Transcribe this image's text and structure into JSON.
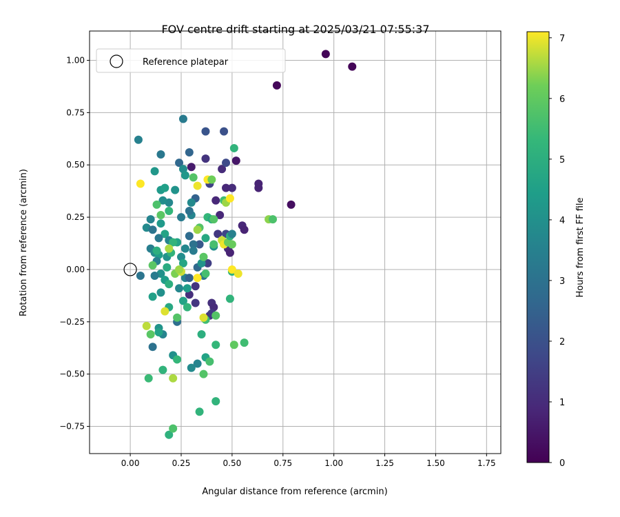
{
  "chart_data": {
    "type": "scatter",
    "title": "FOV centre drift starting at 2025/03/21 07:55:37",
    "xlabel": "Angular distance from reference (arcmin)",
    "ylabel": "Rotation from reference (arcmin)",
    "xlim": [
      -0.2,
      1.82
    ],
    "ylim": [
      -0.88,
      1.14
    ],
    "xticks": [
      "0.00",
      "0.25",
      "0.50",
      "0.75",
      "1.00",
      "1.25",
      "1.50",
      "1.75"
    ],
    "xtick_values": [
      0,
      0.25,
      0.5,
      0.75,
      1.0,
      1.25,
      1.5,
      1.75
    ],
    "yticks": [
      "1.00",
      "0.75",
      "0.50",
      "0.25",
      "0.00",
      "−0.25",
      "−0.50",
      "−0.75"
    ],
    "ytick_values": [
      1.0,
      0.75,
      0.5,
      0.25,
      0,
      -0.25,
      -0.5,
      -0.75
    ],
    "grid": true,
    "legend": {
      "position": "upper-left",
      "entries": [
        {
          "label": "Reference platepar",
          "marker": "open-circle"
        }
      ]
    },
    "reference_point": {
      "x": 0.0,
      "y": 0.0
    },
    "colorbar": {
      "label": "Hours from first FF file",
      "colormap": "viridis",
      "range": [
        0,
        7.1
      ],
      "ticks": [
        "0",
        "1",
        "2",
        "3",
        "4",
        "5",
        "6",
        "7"
      ],
      "tick_values": [
        0,
        1,
        2,
        3,
        4,
        5,
        6,
        7
      ]
    },
    "points": [
      {
        "x": 0.96,
        "y": 1.03,
        "h": 0.1
      },
      {
        "x": 1.09,
        "y": 0.97,
        "h": 0.1
      },
      {
        "x": 0.72,
        "y": 0.88,
        "h": 0.15
      },
      {
        "x": 0.79,
        "y": 0.31,
        "h": 0.3
      },
      {
        "x": 0.63,
        "y": 0.41,
        "h": 0.8
      },
      {
        "x": 0.63,
        "y": 0.39,
        "h": 0.8
      },
      {
        "x": 0.52,
        "y": 0.52,
        "h": 0.5
      },
      {
        "x": 0.55,
        "y": 0.21,
        "h": 0.9
      },
      {
        "x": 0.56,
        "y": 0.19,
        "h": 0.8
      },
      {
        "x": 0.5,
        "y": 0.39,
        "h": 1.0
      },
      {
        "x": 0.47,
        "y": 0.39,
        "h": 0.9
      },
      {
        "x": 0.45,
        "y": 0.48,
        "h": 1.0
      },
      {
        "x": 0.42,
        "y": 0.33,
        "h": 0.9
      },
      {
        "x": 0.44,
        "y": 0.26,
        "h": 0.9
      },
      {
        "x": 0.43,
        "y": 0.17,
        "h": 1.3
      },
      {
        "x": 0.48,
        "y": 0.1,
        "h": 1.0
      },
      {
        "x": 0.49,
        "y": 0.08,
        "h": 0.8
      },
      {
        "x": 0.47,
        "y": 0.17,
        "h": 1.7
      },
      {
        "x": 0.37,
        "y": 0.53,
        "h": 1.2
      },
      {
        "x": 0.3,
        "y": 0.49,
        "h": 0.6
      },
      {
        "x": 0.37,
        "y": 0.66,
        "h": 2.1
      },
      {
        "x": 0.46,
        "y": 0.66,
        "h": 2.0
      },
      {
        "x": 0.47,
        "y": 0.51,
        "h": 1.8
      },
      {
        "x": 0.39,
        "y": 0.41,
        "h": 1.6
      },
      {
        "x": 0.4,
        "y": -0.16,
        "h": 1.1
      },
      {
        "x": 0.41,
        "y": -0.18,
        "h": 1.0
      },
      {
        "x": 0.39,
        "y": -0.22,
        "h": 1.2
      },
      {
        "x": 0.4,
        "y": -0.21,
        "h": 1.4
      },
      {
        "x": 0.38,
        "y": 0.03,
        "h": 1.5
      },
      {
        "x": 0.32,
        "y": -0.08,
        "h": 1.2
      },
      {
        "x": 0.29,
        "y": -0.12,
        "h": 1.1
      },
      {
        "x": 0.32,
        "y": -0.16,
        "h": 1.3
      },
      {
        "x": 0.32,
        "y": 0.34,
        "h": 2.5
      },
      {
        "x": 0.34,
        "y": 0.12,
        "h": 2.2
      },
      {
        "x": 0.29,
        "y": 0.56,
        "h": 2.6
      },
      {
        "x": 0.24,
        "y": 0.51,
        "h": 2.7
      },
      {
        "x": 0.26,
        "y": 0.72,
        "h": 3.3
      },
      {
        "x": 0.04,
        "y": 0.62,
        "h": 3.5
      },
      {
        "x": 0.15,
        "y": 0.55,
        "h": 3.2
      },
      {
        "x": 0.05,
        "y": -0.03,
        "h": 3.1
      },
      {
        "x": 0.11,
        "y": -0.37,
        "h": 3.0
      },
      {
        "x": 0.16,
        "y": -0.31,
        "h": 3.6
      },
      {
        "x": 0.23,
        "y": -0.25,
        "h": 2.9
      },
      {
        "x": 0.3,
        "y": -0.47,
        "h": 3.8
      },
      {
        "x": 0.33,
        "y": -0.45,
        "h": 3.6
      },
      {
        "x": 0.21,
        "y": -0.41,
        "h": 4.0
      },
      {
        "x": 0.3,
        "y": 0.26,
        "h": 3.6
      },
      {
        "x": 0.25,
        "y": 0.25,
        "h": 3.3
      },
      {
        "x": 0.29,
        "y": 0.28,
        "h": 3.0
      },
      {
        "x": 0.3,
        "y": 0.32,
        "h": 3.8
      },
      {
        "x": 0.19,
        "y": 0.32,
        "h": 3.7
      },
      {
        "x": 0.16,
        "y": 0.33,
        "h": 3.9
      },
      {
        "x": 0.22,
        "y": 0.38,
        "h": 4.1
      },
      {
        "x": 0.15,
        "y": 0.38,
        "h": 4.3
      },
      {
        "x": 0.17,
        "y": 0.39,
        "h": 4.5
      },
      {
        "x": 0.12,
        "y": 0.47,
        "h": 4.2
      },
      {
        "x": 0.26,
        "y": 0.48,
        "h": 3.9
      },
      {
        "x": 0.27,
        "y": 0.45,
        "h": 4.2
      },
      {
        "x": 0.1,
        "y": 0.24,
        "h": 3.6
      },
      {
        "x": 0.08,
        "y": 0.2,
        "h": 3.8
      },
      {
        "x": 0.11,
        "y": 0.19,
        "h": 3.1
      },
      {
        "x": 0.15,
        "y": 0.22,
        "h": 4.3
      },
      {
        "x": 0.17,
        "y": 0.17,
        "h": 4.6
      },
      {
        "x": 0.14,
        "y": 0.15,
        "h": 3.2
      },
      {
        "x": 0.19,
        "y": 0.14,
        "h": 3.6
      },
      {
        "x": 0.1,
        "y": 0.1,
        "h": 3.4
      },
      {
        "x": 0.12,
        "y": 0.08,
        "h": 3.9
      },
      {
        "x": 0.14,
        "y": 0.07,
        "h": 4.4
      },
      {
        "x": 0.18,
        "y": 0.06,
        "h": 4.1
      },
      {
        "x": 0.2,
        "y": 0.08,
        "h": 5.2
      },
      {
        "x": 0.25,
        "y": 0.06,
        "h": 3.9
      },
      {
        "x": 0.27,
        "y": 0.1,
        "h": 3.7
      },
      {
        "x": 0.29,
        "y": 0.16,
        "h": 2.8
      },
      {
        "x": 0.31,
        "y": 0.12,
        "h": 3.0
      },
      {
        "x": 0.31,
        "y": 0.09,
        "h": 3.3
      },
      {
        "x": 0.23,
        "y": 0.13,
        "h": 4.6
      },
      {
        "x": 0.21,
        "y": 0.13,
        "h": 5.2
      },
      {
        "x": 0.26,
        "y": 0.03,
        "h": 4.7
      },
      {
        "x": 0.27,
        "y": -0.04,
        "h": 3.5
      },
      {
        "x": 0.29,
        "y": -0.04,
        "h": 2.5
      },
      {
        "x": 0.33,
        "y": 0.01,
        "h": 2.7
      },
      {
        "x": 0.36,
        "y": -0.03,
        "h": 3.1
      },
      {
        "x": 0.35,
        "y": 0.03,
        "h": 4.1
      },
      {
        "x": 0.13,
        "y": 0.04,
        "h": 3.5
      },
      {
        "x": 0.15,
        "y": -0.02,
        "h": 4.0
      },
      {
        "x": 0.12,
        "y": -0.03,
        "h": 3.3
      },
      {
        "x": 0.17,
        "y": -0.05,
        "h": 4.4
      },
      {
        "x": 0.19,
        "y": -0.07,
        "h": 5.0
      },
      {
        "x": 0.22,
        "y": -0.02,
        "h": 6.3
      },
      {
        "x": 0.24,
        "y": -0.09,
        "h": 3.7
      },
      {
        "x": 0.28,
        "y": -0.09,
        "h": 4.4
      },
      {
        "x": 0.11,
        "y": -0.13,
        "h": 4.5
      },
      {
        "x": 0.15,
        "y": -0.11,
        "h": 4.0
      },
      {
        "x": 0.19,
        "y": -0.18,
        "h": 4.8
      },
      {
        "x": 0.26,
        "y": -0.15,
        "h": 4.6
      },
      {
        "x": 0.28,
        "y": -0.18,
        "h": 5.2
      },
      {
        "x": 0.23,
        "y": -0.23,
        "h": 5.8
      },
      {
        "x": 0.14,
        "y": -0.28,
        "h": 4.1
      },
      {
        "x": 0.14,
        "y": -0.3,
        "h": 4.6
      },
      {
        "x": 0.1,
        "y": -0.31,
        "h": 5.9
      },
      {
        "x": 0.08,
        "y": -0.27,
        "h": 6.7
      },
      {
        "x": 0.17,
        "y": -0.2,
        "h": 6.9
      },
      {
        "x": 0.21,
        "y": -0.52,
        "h": 6.6
      },
      {
        "x": 0.16,
        "y": -0.48,
        "h": 5.2
      },
      {
        "x": 0.09,
        "y": -0.52,
        "h": 5.4
      },
      {
        "x": 0.23,
        "y": -0.43,
        "h": 5.3
      },
      {
        "x": 0.19,
        "y": -0.79,
        "h": 5.1
      },
      {
        "x": 0.21,
        "y": -0.76,
        "h": 5.7
      },
      {
        "x": 0.34,
        "y": -0.68,
        "h": 5.2
      },
      {
        "x": 0.42,
        "y": -0.63,
        "h": 5.2
      },
      {
        "x": 0.36,
        "y": -0.5,
        "h": 5.8
      },
      {
        "x": 0.37,
        "y": -0.42,
        "h": 4.6
      },
      {
        "x": 0.39,
        "y": -0.44,
        "h": 5.6
      },
      {
        "x": 0.42,
        "y": -0.36,
        "h": 5.3
      },
      {
        "x": 0.35,
        "y": -0.31,
        "h": 5.0
      },
      {
        "x": 0.37,
        "y": -0.24,
        "h": 5.5
      },
      {
        "x": 0.36,
        "y": -0.23,
        "h": 6.9
      },
      {
        "x": 0.42,
        "y": -0.22,
        "h": 5.8
      },
      {
        "x": 0.49,
        "y": -0.14,
        "h": 5.2
      },
      {
        "x": 0.51,
        "y": -0.36,
        "h": 6.0
      },
      {
        "x": 0.56,
        "y": -0.35,
        "h": 5.5
      },
      {
        "x": 0.5,
        "y": -0.01,
        "h": 5.1
      },
      {
        "x": 0.5,
        "y": 0.0,
        "h": 7.1
      },
      {
        "x": 0.53,
        "y": -0.02,
        "h": 7.0
      },
      {
        "x": 0.33,
        "y": -0.04,
        "h": 7.1
      },
      {
        "x": 0.25,
        "y": -0.01,
        "h": 6.8
      },
      {
        "x": 0.37,
        "y": -0.02,
        "h": 5.6
      },
      {
        "x": 0.24,
        "y": 0.0,
        "h": 6.5
      },
      {
        "x": 0.11,
        "y": 0.02,
        "h": 5.9
      },
      {
        "x": 0.34,
        "y": 0.2,
        "h": 5.8
      },
      {
        "x": 0.33,
        "y": 0.19,
        "h": 6.5
      },
      {
        "x": 0.38,
        "y": 0.25,
        "h": 5.3
      },
      {
        "x": 0.4,
        "y": 0.24,
        "h": 4.9
      },
      {
        "x": 0.41,
        "y": 0.24,
        "h": 5.8
      },
      {
        "x": 0.37,
        "y": 0.15,
        "h": 4.8
      },
      {
        "x": 0.41,
        "y": 0.11,
        "h": 4.0
      },
      {
        "x": 0.41,
        "y": 0.12,
        "h": 5.6
      },
      {
        "x": 0.45,
        "y": 0.14,
        "h": 6.8
      },
      {
        "x": 0.46,
        "y": 0.12,
        "h": 7.0
      },
      {
        "x": 0.48,
        "y": 0.13,
        "h": 6.1
      },
      {
        "x": 0.49,
        "y": 0.16,
        "h": 5.0
      },
      {
        "x": 0.5,
        "y": 0.17,
        "h": 3.5
      },
      {
        "x": 0.5,
        "y": 0.12,
        "h": 6.1
      },
      {
        "x": 0.46,
        "y": 0.33,
        "h": 5.5
      },
      {
        "x": 0.47,
        "y": 0.32,
        "h": 6.5
      },
      {
        "x": 0.49,
        "y": 0.34,
        "h": 7.1
      },
      {
        "x": 0.51,
        "y": 0.58,
        "h": 5.2
      },
      {
        "x": 0.31,
        "y": 0.44,
        "h": 5.8
      },
      {
        "x": 0.38,
        "y": 0.43,
        "h": 7.1
      },
      {
        "x": 0.4,
        "y": 0.43,
        "h": 6.2
      },
      {
        "x": 0.33,
        "y": 0.4,
        "h": 7.0
      },
      {
        "x": 0.05,
        "y": 0.41,
        "h": 7.1
      },
      {
        "x": 0.13,
        "y": 0.31,
        "h": 5.7
      },
      {
        "x": 0.15,
        "y": 0.26,
        "h": 5.9
      },
      {
        "x": 0.19,
        "y": 0.1,
        "h": 6.6
      },
      {
        "x": 0.19,
        "y": 0.28,
        "h": 5.3
      },
      {
        "x": 0.68,
        "y": 0.24,
        "h": 6.4
      },
      {
        "x": 0.7,
        "y": 0.24,
        "h": 5.7
      },
      {
        "x": 0.36,
        "y": 0.06,
        "h": 5.9
      },
      {
        "x": 0.18,
        "y": 0.01,
        "h": 4.9
      },
      {
        "x": 0.13,
        "y": 0.09,
        "h": 5.0
      }
    ]
  }
}
